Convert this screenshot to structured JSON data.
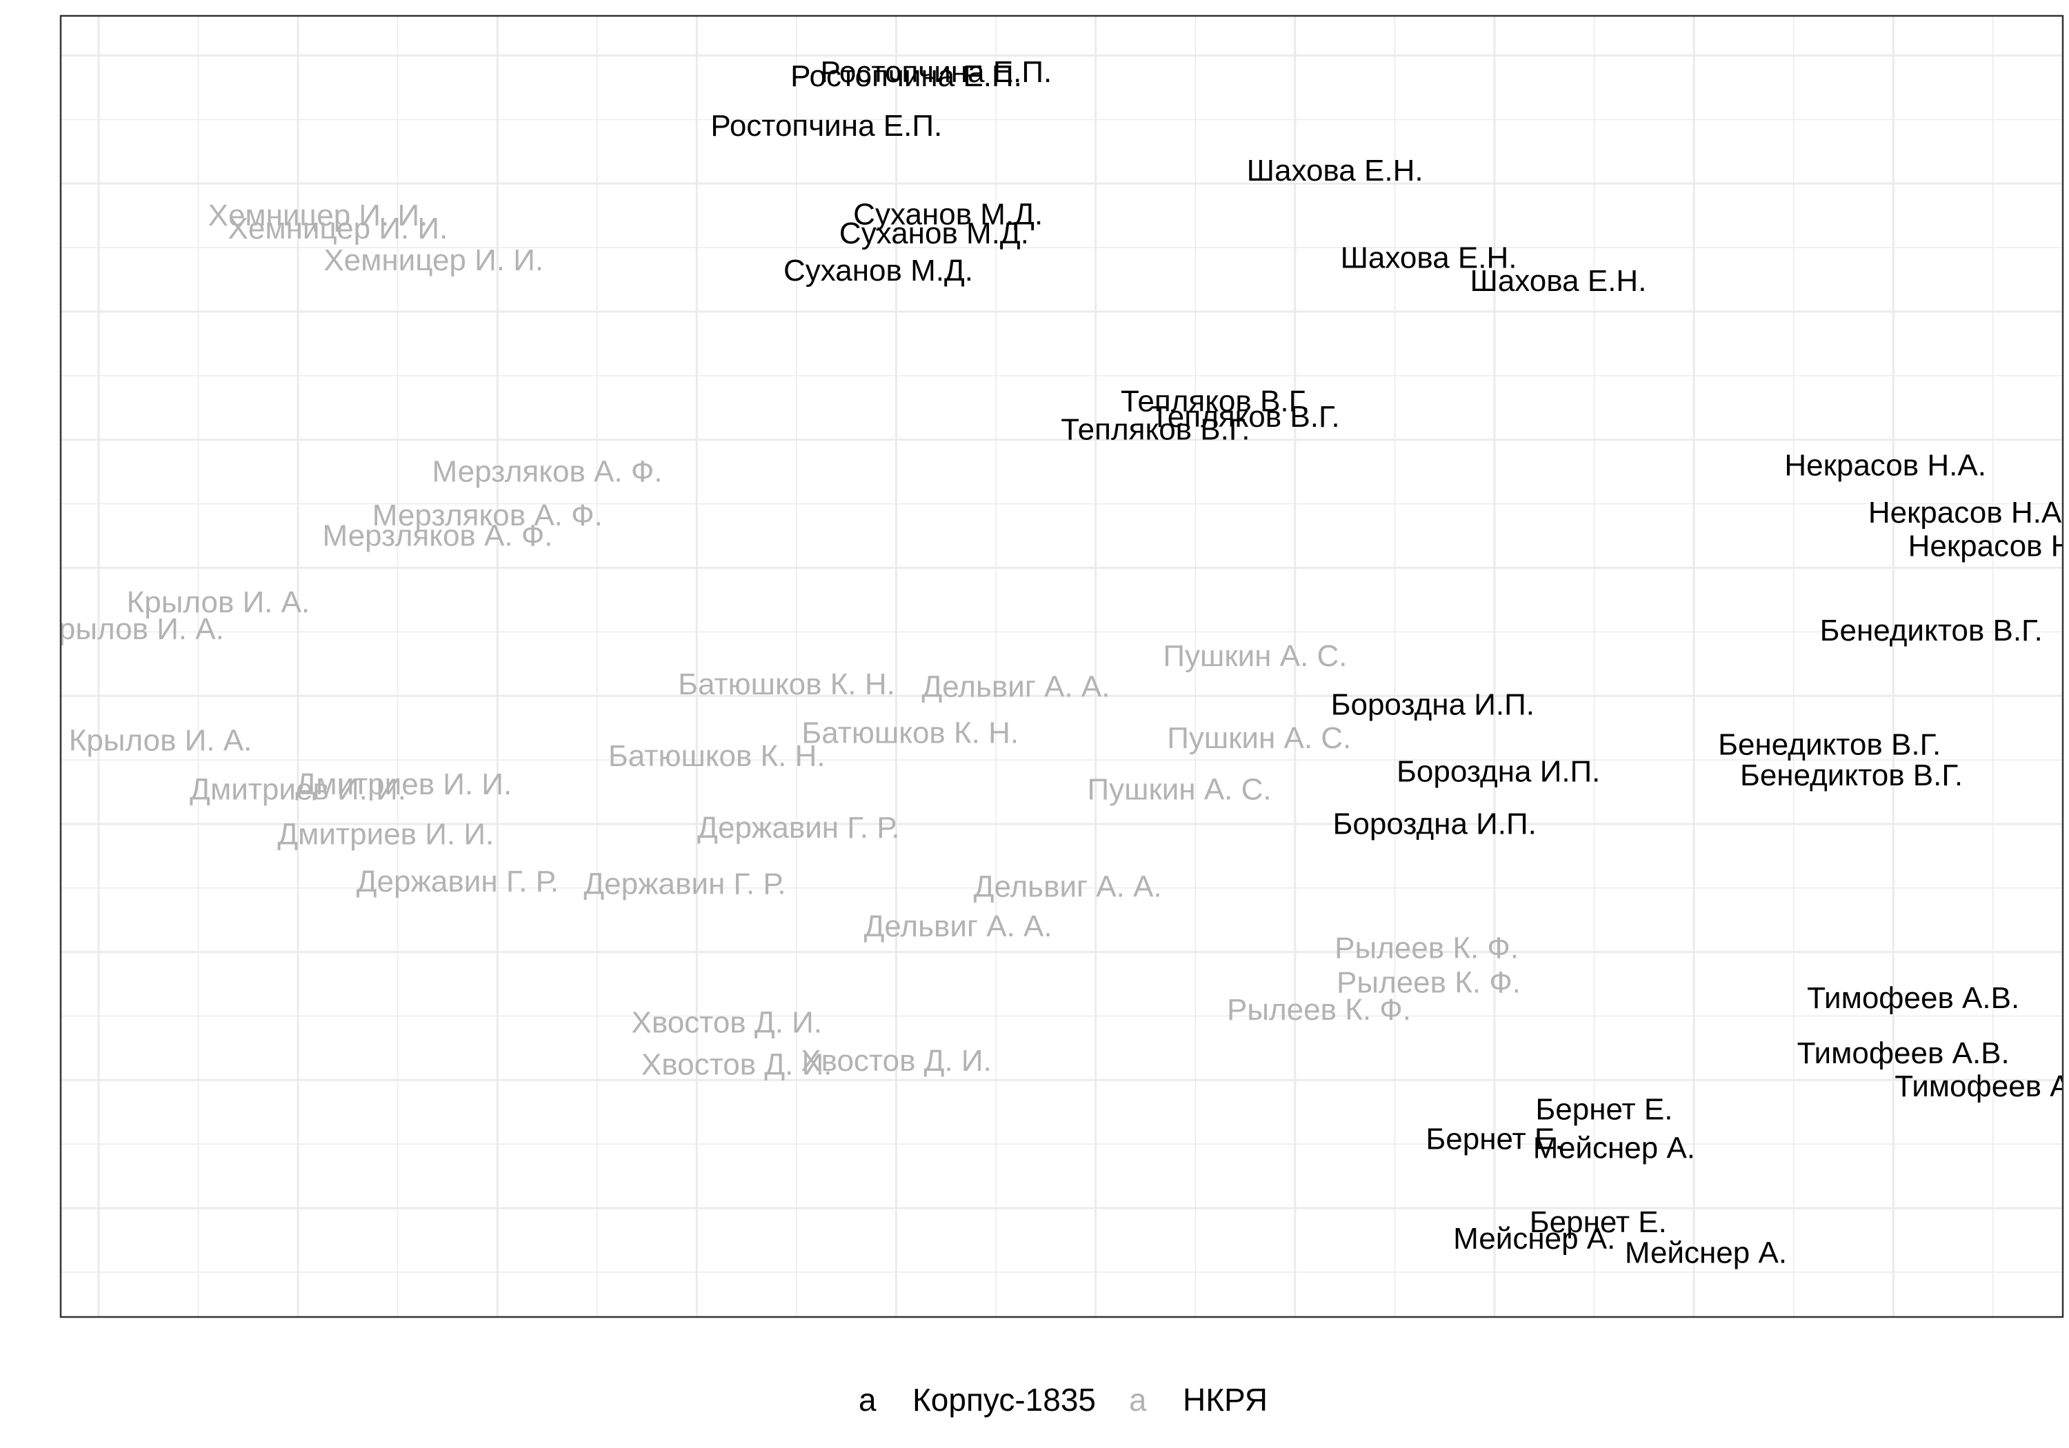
{
  "chart_data": {
    "type": "scatter",
    "title": "",
    "xlabel": "",
    "ylabel": "",
    "xlim": [
      -0.19,
      9.85
    ],
    "ylim": [
      9.85,
      -0.31
    ],
    "grid": true,
    "legend_position": "bottom",
    "legend": {
      "key_glyph": "a",
      "entries": [
        {
          "name": "Корпус-1835",
          "color": "#000000"
        },
        {
          "name": "НКРЯ",
          "color": "#b3b3b3"
        }
      ]
    },
    "series": [
      {
        "name": "Корпус-1835",
        "color": "#000000",
        "points": [
          {
            "label": "Ростопчина Е.П.",
            "x": 4.2,
            "y": 0.13
          },
          {
            "label": "Ростопчина Е.П.",
            "x": 4.05,
            "y": 0.16
          },
          {
            "label": "Ростопчина Е.П.",
            "x": 3.65,
            "y": 0.55
          },
          {
            "label": "Шахова Е.Н.",
            "x": 6.2,
            "y": 0.9
          },
          {
            "label": "Шахова Е.Н.",
            "x": 6.67,
            "y": 1.58
          },
          {
            "label": "Шахова Е.Н.",
            "x": 7.32,
            "y": 1.76
          },
          {
            "label": "Суханов М.Д.",
            "x": 4.26,
            "y": 1.24
          },
          {
            "label": "Суханов М.Д.",
            "x": 4.19,
            "y": 1.39
          },
          {
            "label": "Суханов М.Д.",
            "x": 3.91,
            "y": 1.68
          },
          {
            "label": "Тепляков В.Г.",
            "x": 5.6,
            "y": 2.7
          },
          {
            "label": "Тепляков В.Г.",
            "x": 5.75,
            "y": 2.82
          },
          {
            "label": "Тепляков В.Г.",
            "x": 5.3,
            "y": 2.92
          },
          {
            "label": "Некрасов Н.А.",
            "x": 8.96,
            "y": 3.2
          },
          {
            "label": "Некрасов Н.А.",
            "x": 9.38,
            "y": 3.57
          },
          {
            "label": "Некрасов Н.А.",
            "x": 9.58,
            "y": 3.83
          },
          {
            "label": "Бенедиктов В.Г.",
            "x": 9.19,
            "y": 4.49
          },
          {
            "label": "Бенедиктов В.Г.",
            "x": 8.68,
            "y": 5.38
          },
          {
            "label": "Бенедиктов В.Г.",
            "x": 8.79,
            "y": 5.62
          },
          {
            "label": "Бороздна И.П.",
            "x": 6.69,
            "y": 5.07
          },
          {
            "label": "Бороздна И.П.",
            "x": 7.02,
            "y": 5.59
          },
          {
            "label": "Бороздна И.П.",
            "x": 6.7,
            "y": 6.0
          },
          {
            "label": "Тимофеев А.В.",
            "x": 9.1,
            "y": 7.36
          },
          {
            "label": "Тимофеев А.В.",
            "x": 9.05,
            "y": 7.79
          },
          {
            "label": "Тимофеев А.В.",
            "x": 9.54,
            "y": 8.05
          },
          {
            "label": "Бернет Е.",
            "x": 7.55,
            "y": 8.23
          },
          {
            "label": "Бернет Е.",
            "x": 7.0,
            "y": 8.46
          },
          {
            "label": "Бернет Е.",
            "x": 7.52,
            "y": 9.11
          },
          {
            "label": "Мейснер А.",
            "x": 7.6,
            "y": 8.53
          },
          {
            "label": "Мейснер А.",
            "x": 7.2,
            "y": 9.24
          },
          {
            "label": "Мейснер А.",
            "x": 8.06,
            "y": 9.35
          }
        ]
      },
      {
        "name": "НКРЯ",
        "color": "#b3b3b3",
        "points": [
          {
            "label": "Хемницер И. И.",
            "x": 1.1,
            "y": 1.25
          },
          {
            "label": "Хемницер И. И.",
            "x": 1.2,
            "y": 1.35
          },
          {
            "label": "Хемницер И. И.",
            "x": 1.68,
            "y": 1.6
          },
          {
            "label": "Мерзляков А. Ф.",
            "x": 2.25,
            "y": 3.25
          },
          {
            "label": "Мерзляков А. Ф.",
            "x": 1.95,
            "y": 3.59
          },
          {
            "label": "Мерзляков А. Ф.",
            "x": 1.7,
            "y": 3.75
          },
          {
            "label": "Крылов И. А.",
            "x": 0.6,
            "y": 4.27
          },
          {
            "label": "Крылов И. А.",
            "x": 0.17,
            "y": 4.48
          },
          {
            "label": "Крылов И. А.",
            "x": 0.31,
            "y": 5.35
          },
          {
            "label": "Батюшков К. Н.",
            "x": 3.45,
            "y": 4.91
          },
          {
            "label": "Батюшков К. Н.",
            "x": 4.07,
            "y": 5.29
          },
          {
            "label": "Батюшков К. Н.",
            "x": 3.1,
            "y": 5.47
          },
          {
            "label": "Дельвиг А. А.",
            "x": 4.6,
            "y": 4.93
          },
          {
            "label": "Дельвиг А. А.",
            "x": 4.86,
            "y": 6.49
          },
          {
            "label": "Дельвиг А. А.",
            "x": 4.31,
            "y": 6.8
          },
          {
            "label": "Пушкин А. С.",
            "x": 5.8,
            "y": 4.69
          },
          {
            "label": "Пушкин А. С.",
            "x": 5.82,
            "y": 5.33
          },
          {
            "label": "Пушкин А. С.",
            "x": 5.42,
            "y": 5.73
          },
          {
            "label": "Дмитриев И. И.",
            "x": 1.53,
            "y": 5.69
          },
          {
            "label": "Дмитриев И. И.",
            "x": 1.0,
            "y": 5.73
          },
          {
            "label": "Дмитриев И. И.",
            "x": 1.44,
            "y": 6.08
          },
          {
            "label": "Державин Г. Р.",
            "x": 3.51,
            "y": 6.03
          },
          {
            "label": "Державин Г. Р.",
            "x": 1.8,
            "y": 6.45
          },
          {
            "label": "Державин Г. Р.",
            "x": 2.94,
            "y": 6.47
          },
          {
            "label": "Рылеев К. Ф.",
            "x": 6.66,
            "y": 6.97
          },
          {
            "label": "Рылеев К. Ф.",
            "x": 6.67,
            "y": 7.24
          },
          {
            "label": "Рылеев К. Ф.",
            "x": 6.12,
            "y": 7.45
          },
          {
            "label": "Хвостов Д. И.",
            "x": 3.15,
            "y": 7.55
          },
          {
            "label": "Хвостов Д. И.",
            "x": 4.0,
            "y": 7.85
          },
          {
            "label": "Хвостов Д. И.",
            "x": 3.2,
            "y": 7.88
          }
        ]
      }
    ]
  }
}
